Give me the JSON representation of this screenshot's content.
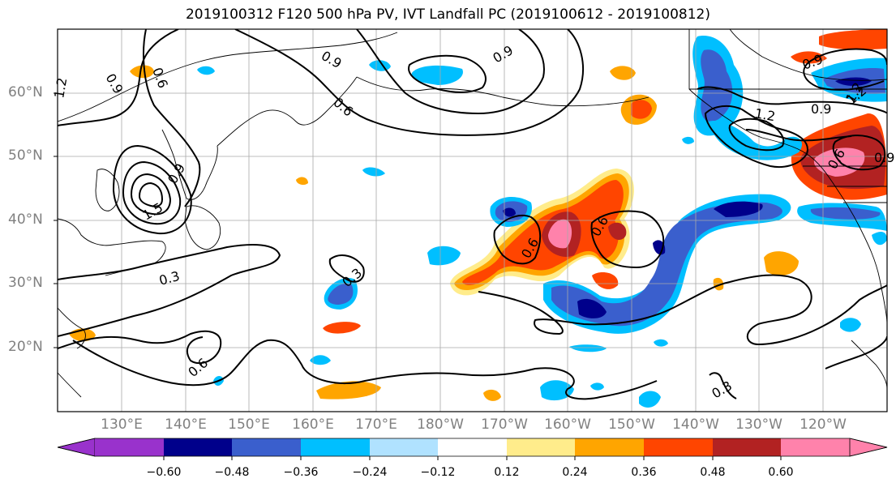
{
  "title": "2019100312 F120 500 hPa PV, IVT Landfall PC (2019100612 - 2019100812)",
  "map": {
    "lat_labels": [
      "60°N",
      "50°N",
      "40°N",
      "30°N",
      "20°N"
    ],
    "lon_labels": [
      "130°E",
      "140°E",
      "150°E",
      "160°E",
      "170°E",
      "180°W",
      "170°W",
      "160°W",
      "150°W",
      "140°W",
      "130°W",
      "120°W"
    ],
    "contour_labels": [
      "1.2",
      "0.9",
      "0.6",
      "0.9",
      "0.6",
      "0.9",
      "1.2",
      "1.2",
      "0.9",
      "1.5",
      "0.9",
      "0.3",
      "0.3",
      "0.6",
      "0.6",
      "0.6",
      "0.9",
      "1.2",
      "0.9",
      "0.6",
      "0.3"
    ]
  },
  "colorbar": {
    "ticks": [
      "−0.60",
      "−0.48",
      "−0.36",
      "−0.24",
      "−0.12",
      "0.12",
      "0.24",
      "0.36",
      "0.48",
      "0.60"
    ],
    "colors": [
      "#9932cc",
      "#00008b",
      "#3a5fcd",
      "#00bfff",
      "#b0e2ff",
      "#ffffff",
      "#ffec8b",
      "#ffa500",
      "#ff4500",
      "#b22222",
      "#ff82ab"
    ]
  }
}
